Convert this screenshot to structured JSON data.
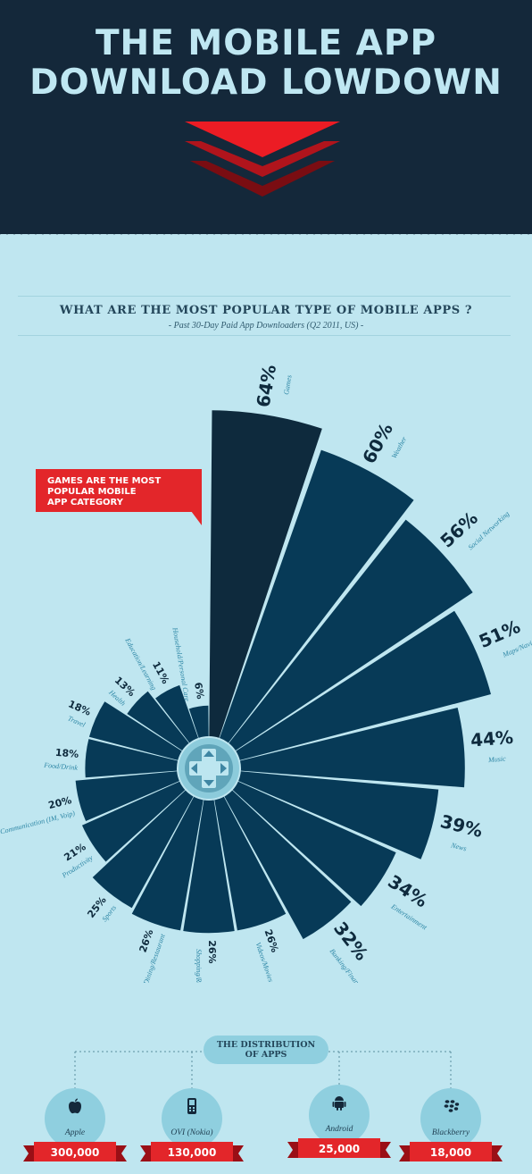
{
  "header": {
    "title_line1": "THE MOBILE APP",
    "title_line2": "DOWNLOAD LOWDOWN",
    "colors": {
      "background": "#14283a",
      "title": "#bfe7f2",
      "chevron_top": "#ec1c24",
      "chevron_mid": "#b0141c",
      "chevron_bottom": "#7a0d12"
    }
  },
  "section": {
    "title": "WHAT ARE THE MOST POPULAR TYPE OF MOBILE APPS ?",
    "subtitle": "- Past 30-Day Paid App Downloaders (Q2 2011, US) -"
  },
  "callout": {
    "line1": "GAMES ARE THE MOST POPULAR MOBILE",
    "line2": "APP CATEGORY"
  },
  "center_icon": "dpad-game-controller-icon",
  "chart_data": {
    "type": "polar-bar",
    "value_unit": "%",
    "categories": [
      "Games",
      "Weather",
      "Social Networking",
      "Maps/Navigation",
      "Music",
      "News",
      "Entertainment",
      "Banking/Finance",
      "Videos/Movies",
      "Shopping/Retail",
      "Dining/Restaurant",
      "Sports",
      "Productivity",
      "Communication (IM, Voip)",
      "Food/Drink",
      "Travel",
      "Health",
      "Education/Learning",
      "Household/Personal Care"
    ],
    "values": [
      64,
      60,
      56,
      51,
      44,
      39,
      34,
      32,
      26,
      26,
      26,
      25,
      21,
      20,
      18,
      18,
      13,
      11,
      6
    ],
    "labels": [
      "64%",
      "60%",
      "56%",
      "51%",
      "44%",
      "39%",
      "34%",
      "32%",
      "26%",
      "26%",
      "26%",
      "25%",
      "21%",
      "20%",
      "18%",
      "18%",
      "13%",
      "11%",
      "6%"
    ],
    "highlight": "Games",
    "colors": {
      "highlight": "#0e2a3d",
      "bars": "#073a57",
      "label_category": "#2d86a5",
      "label_value": "#0e2a3d"
    }
  },
  "distribution": {
    "title_line1": "THE DISTRIBUTION",
    "title_line2": "OF APPS",
    "platforms": [
      {
        "name": "Apple",
        "value": "300,000",
        "icon": "apple-icon"
      },
      {
        "name": "OVI (Nokia)",
        "value": "130,000",
        "icon": "nokia-phone-icon"
      },
      {
        "name": "Android",
        "value": "25,000",
        "icon": "android-icon"
      },
      {
        "name": "Blackberry",
        "value": "18,000",
        "icon": "blackberry-icon"
      }
    ]
  }
}
